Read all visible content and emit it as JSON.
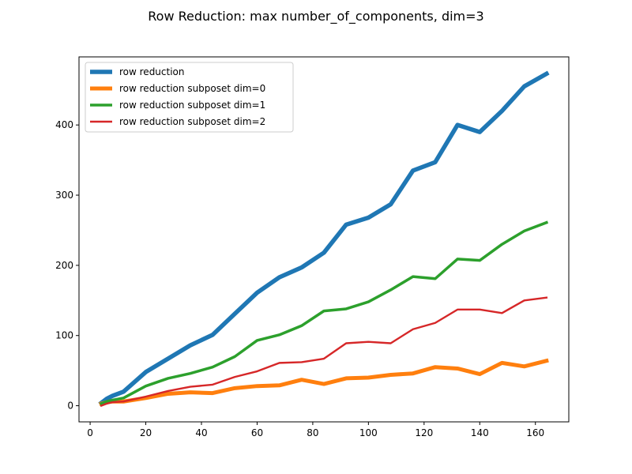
{
  "chart_data": {
    "type": "line",
    "title": "Row Reduction: max number_of_components, dim=3",
    "xlabel": "",
    "ylabel": "",
    "xlim": [
      -4,
      172
    ],
    "ylim": [
      -23,
      497
    ],
    "xticks": [
      0,
      20,
      40,
      60,
      80,
      100,
      120,
      140,
      160
    ],
    "yticks": [
      0,
      100,
      200,
      300,
      400
    ],
    "grid": false,
    "legend_position": "upper-left",
    "x": [
      4,
      6,
      8,
      12,
      20,
      28,
      36,
      44,
      52,
      60,
      68,
      76,
      84,
      92,
      100,
      108,
      116,
      124,
      132,
      140,
      148,
      156,
      164
    ],
    "series": [
      {
        "name": "row reduction",
        "color": "#1f77b4",
        "values": [
          4,
          10,
          14,
          20,
          48,
          67,
          86,
          101,
          131,
          161,
          183,
          197,
          218,
          258,
          268,
          287,
          335,
          347,
          400,
          390,
          420,
          455,
          473
        ]
      },
      {
        "name": "row reduction subposet dim=0",
        "color": "#ff7f0e",
        "values": [
          3,
          5,
          6,
          6,
          11,
          17,
          19,
          18,
          25,
          28,
          29,
          37,
          31,
          39,
          40,
          44,
          46,
          55,
          53,
          45,
          61,
          56,
          64
        ]
      },
      {
        "name": "row reduction subposet dim=1",
        "color": "#2ca02c",
        "values": [
          3,
          6,
          8,
          11,
          28,
          39,
          46,
          55,
          70,
          93,
          101,
          114,
          135,
          138,
          148,
          165,
          184,
          181,
          209,
          207,
          230,
          249,
          261
        ]
      },
      {
        "name": "row reduction subposet dim=2",
        "color": "#d62728",
        "values": [
          0,
          3,
          5,
          6,
          13,
          21,
          27,
          30,
          41,
          49,
          61,
          62,
          67,
          89,
          91,
          89,
          109,
          118,
          137,
          137,
          132,
          150,
          154
        ]
      }
    ]
  }
}
